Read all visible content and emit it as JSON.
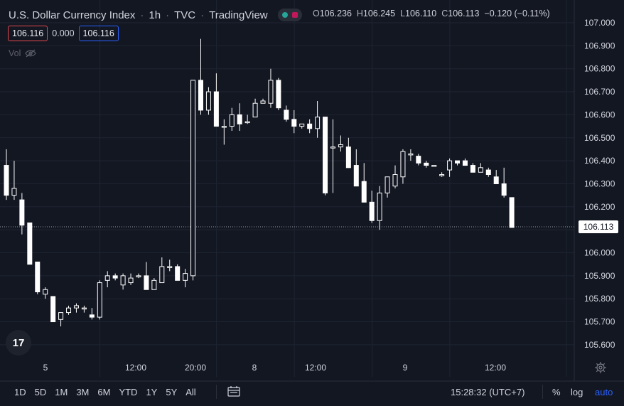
{
  "header": {
    "title": "U.S. Dollar Currency Index",
    "interval": "1h",
    "exchange": "TVC",
    "source": "TradingView",
    "ohlc": {
      "o_label": "O",
      "o_value": "106.236",
      "h_label": "H",
      "h_value": "106.245",
      "l_label": "L",
      "l_value": "106.110",
      "c_label": "C",
      "c_value": "106.113",
      "change": "−0.120 (−0.11%)"
    }
  },
  "quote": {
    "sell": "106.116",
    "spread": "0.000",
    "buy": "106.116"
  },
  "volume_label": "Vol",
  "last_price_tag": "106.113",
  "bottom_bar": {
    "ranges": [
      "1D",
      "5D",
      "1M",
      "3M",
      "6M",
      "YTD",
      "1Y",
      "5Y",
      "All"
    ],
    "clock": "15:28:32 (UTC+7)",
    "percent": "%",
    "log": "log",
    "auto": "auto"
  },
  "colors": {
    "background": "#131722",
    "grid": "#1f2433",
    "candle": "#ffffff",
    "text": "#d1d4dc",
    "axis_text": "#d1d4dc",
    "accent_blue": "#2962ff",
    "sell_red": "#e0484f"
  },
  "chart_data": {
    "type": "candlestick",
    "title": "U.S. Dollar Currency Index",
    "ylim": [
      105.55,
      107.05
    ],
    "y_ticks": [
      "107.000",
      "106.900",
      "106.800",
      "106.700",
      "106.600",
      "106.500",
      "106.400",
      "106.300",
      "106.200",
      "106.100",
      "106.000",
      "105.900",
      "105.800",
      "105.700",
      "105.600"
    ],
    "y_tick_values": [
      107.0,
      106.9,
      106.8,
      106.7,
      106.6,
      106.5,
      106.4,
      106.3,
      106.2,
      106.1,
      106.0,
      105.9,
      105.8,
      105.7,
      105.6
    ],
    "x_ticks": [
      {
        "label": "5",
        "index": 7
      },
      {
        "label": "12:00",
        "index": 22
      },
      {
        "label": "20:00",
        "index": 32
      },
      {
        "label": "8",
        "index": 42
      },
      {
        "label": "12:00",
        "index": 52
      },
      {
        "label": "9",
        "index": 67
      },
      {
        "label": "12:00",
        "index": 82
      }
    ],
    "last_price": 106.113,
    "grid": true,
    "ohlc": [
      [
        106.38,
        106.45,
        106.23,
        106.25
      ],
      [
        106.25,
        106.4,
        106.23,
        106.28
      ],
      [
        106.23,
        106.26,
        106.08,
        106.12
      ],
      [
        106.13,
        106.13,
        105.95,
        105.95
      ],
      [
        105.96,
        105.96,
        105.82,
        105.83
      ],
      [
        105.82,
        105.85,
        105.8,
        105.84
      ],
      [
        105.81,
        105.81,
        105.7,
        105.7
      ],
      [
        105.71,
        105.74,
        105.68,
        105.74
      ],
      [
        105.74,
        105.77,
        105.73,
        105.76
      ],
      [
        105.76,
        105.78,
        105.74,
        105.77
      ],
      [
        105.76,
        105.77,
        105.74,
        105.76
      ],
      [
        105.73,
        105.76,
        105.71,
        105.72
      ],
      [
        105.72,
        105.88,
        105.71,
        105.87
      ],
      [
        105.88,
        105.92,
        105.85,
        105.9
      ],
      [
        105.9,
        105.91,
        105.88,
        105.89
      ],
      [
        105.86,
        105.91,
        105.84,
        105.9
      ],
      [
        105.87,
        105.91,
        105.86,
        105.89
      ],
      [
        105.9,
        105.91,
        105.89,
        105.9
      ],
      [
        105.9,
        105.96,
        105.84,
        105.84
      ],
      [
        105.84,
        105.89,
        105.84,
        105.88
      ],
      [
        105.87,
        105.98,
        105.87,
        105.94
      ],
      [
        105.94,
        105.97,
        105.92,
        105.94
      ],
      [
        105.94,
        105.95,
        105.88,
        105.88
      ],
      [
        105.88,
        105.93,
        105.85,
        105.91
      ],
      [
        105.9,
        106.75,
        105.88,
        106.75
      ],
      [
        106.75,
        106.93,
        106.6,
        106.62
      ],
      [
        106.62,
        106.72,
        106.6,
        106.7
      ],
      [
        106.7,
        106.78,
        106.55,
        106.55
      ],
      [
        106.55,
        106.58,
        106.47,
        106.55
      ],
      [
        106.55,
        106.63,
        106.53,
        106.6
      ],
      [
        106.6,
        106.65,
        106.53,
        106.56
      ],
      [
        106.57,
        106.6,
        106.56,
        106.57
      ],
      [
        106.59,
        106.67,
        106.59,
        106.65
      ],
      [
        106.65,
        106.67,
        106.65,
        106.66
      ],
      [
        106.65,
        106.8,
        106.63,
        106.75
      ],
      [
        106.75,
        106.76,
        106.62,
        106.63
      ],
      [
        106.62,
        106.64,
        106.57,
        106.58
      ],
      [
        106.58,
        106.62,
        106.52,
        106.55
      ],
      [
        106.55,
        106.56,
        106.54,
        106.56
      ],
      [
        106.56,
        106.58,
        106.52,
        106.54
      ],
      [
        106.54,
        106.66,
        106.5,
        106.59
      ],
      [
        106.59,
        106.59,
        106.25,
        106.26
      ],
      [
        106.46,
        106.58,
        106.26,
        106.46
      ],
      [
        106.46,
        106.51,
        106.44,
        106.47
      ],
      [
        106.46,
        106.5,
        106.37,
        106.37
      ],
      [
        106.38,
        106.45,
        106.3,
        106.29
      ],
      [
        106.31,
        106.39,
        106.22,
        106.22
      ],
      [
        106.22,
        106.27,
        106.13,
        106.14
      ],
      [
        106.14,
        106.29,
        106.1,
        106.26
      ],
      [
        106.26,
        106.33,
        106.24,
        106.33
      ],
      [
        106.29,
        106.38,
        106.28,
        106.34
      ],
      [
        106.33,
        106.45,
        106.3,
        106.44
      ],
      [
        106.43,
        106.45,
        106.4,
        106.43
      ],
      [
        106.42,
        106.43,
        106.38,
        106.39
      ],
      [
        106.39,
        106.4,
        106.37,
        106.38
      ],
      [
        106.38,
        106.38,
        106.38,
        106.38
      ],
      [
        106.34,
        106.35,
        106.33,
        106.34
      ],
      [
        106.36,
        106.41,
        106.33,
        106.4
      ],
      [
        106.4,
        106.4,
        106.38,
        106.39
      ],
      [
        106.4,
        106.41,
        106.38,
        106.38
      ],
      [
        106.38,
        106.39,
        106.35,
        106.35
      ],
      [
        106.35,
        106.39,
        106.35,
        106.37
      ],
      [
        106.36,
        106.37,
        106.33,
        106.34
      ],
      [
        106.33,
        106.36,
        106.31,
        106.3
      ],
      [
        106.3,
        106.37,
        106.24,
        106.25
      ],
      [
        106.24,
        106.24,
        106.11,
        106.11
      ]
    ]
  }
}
